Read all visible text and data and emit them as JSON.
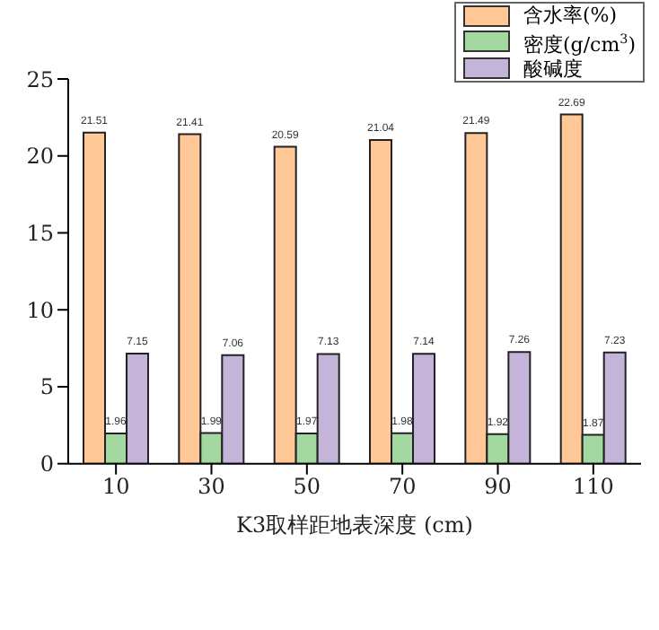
{
  "chart_data": {
    "type": "bar",
    "xlabel": "K3取样距地表深度 (cm)",
    "categories": [
      "10",
      "30",
      "50",
      "70",
      "90",
      "110"
    ],
    "series": [
      {
        "name": "含水率(%)",
        "color": "#ffc896",
        "values": [
          21.51,
          21.41,
          20.59,
          21.04,
          21.49,
          22.69
        ]
      },
      {
        "name": "密度(g/cm$^{3}$)",
        "color": "#a3d9a0",
        "values": [
          1.96,
          1.99,
          1.97,
          1.98,
          1.92,
          1.87
        ]
      },
      {
        "name": "酸碱度",
        "color": "#c4b4d9",
        "values": [
          7.15,
          7.06,
          7.13,
          7.14,
          7.26,
          7.23
        ]
      }
    ],
    "ylim": [
      0,
      25
    ],
    "yticks": [
      0,
      5,
      10,
      15,
      20,
      25
    ],
    "data_labels": true,
    "legend": "top right",
    "grid": false
  }
}
